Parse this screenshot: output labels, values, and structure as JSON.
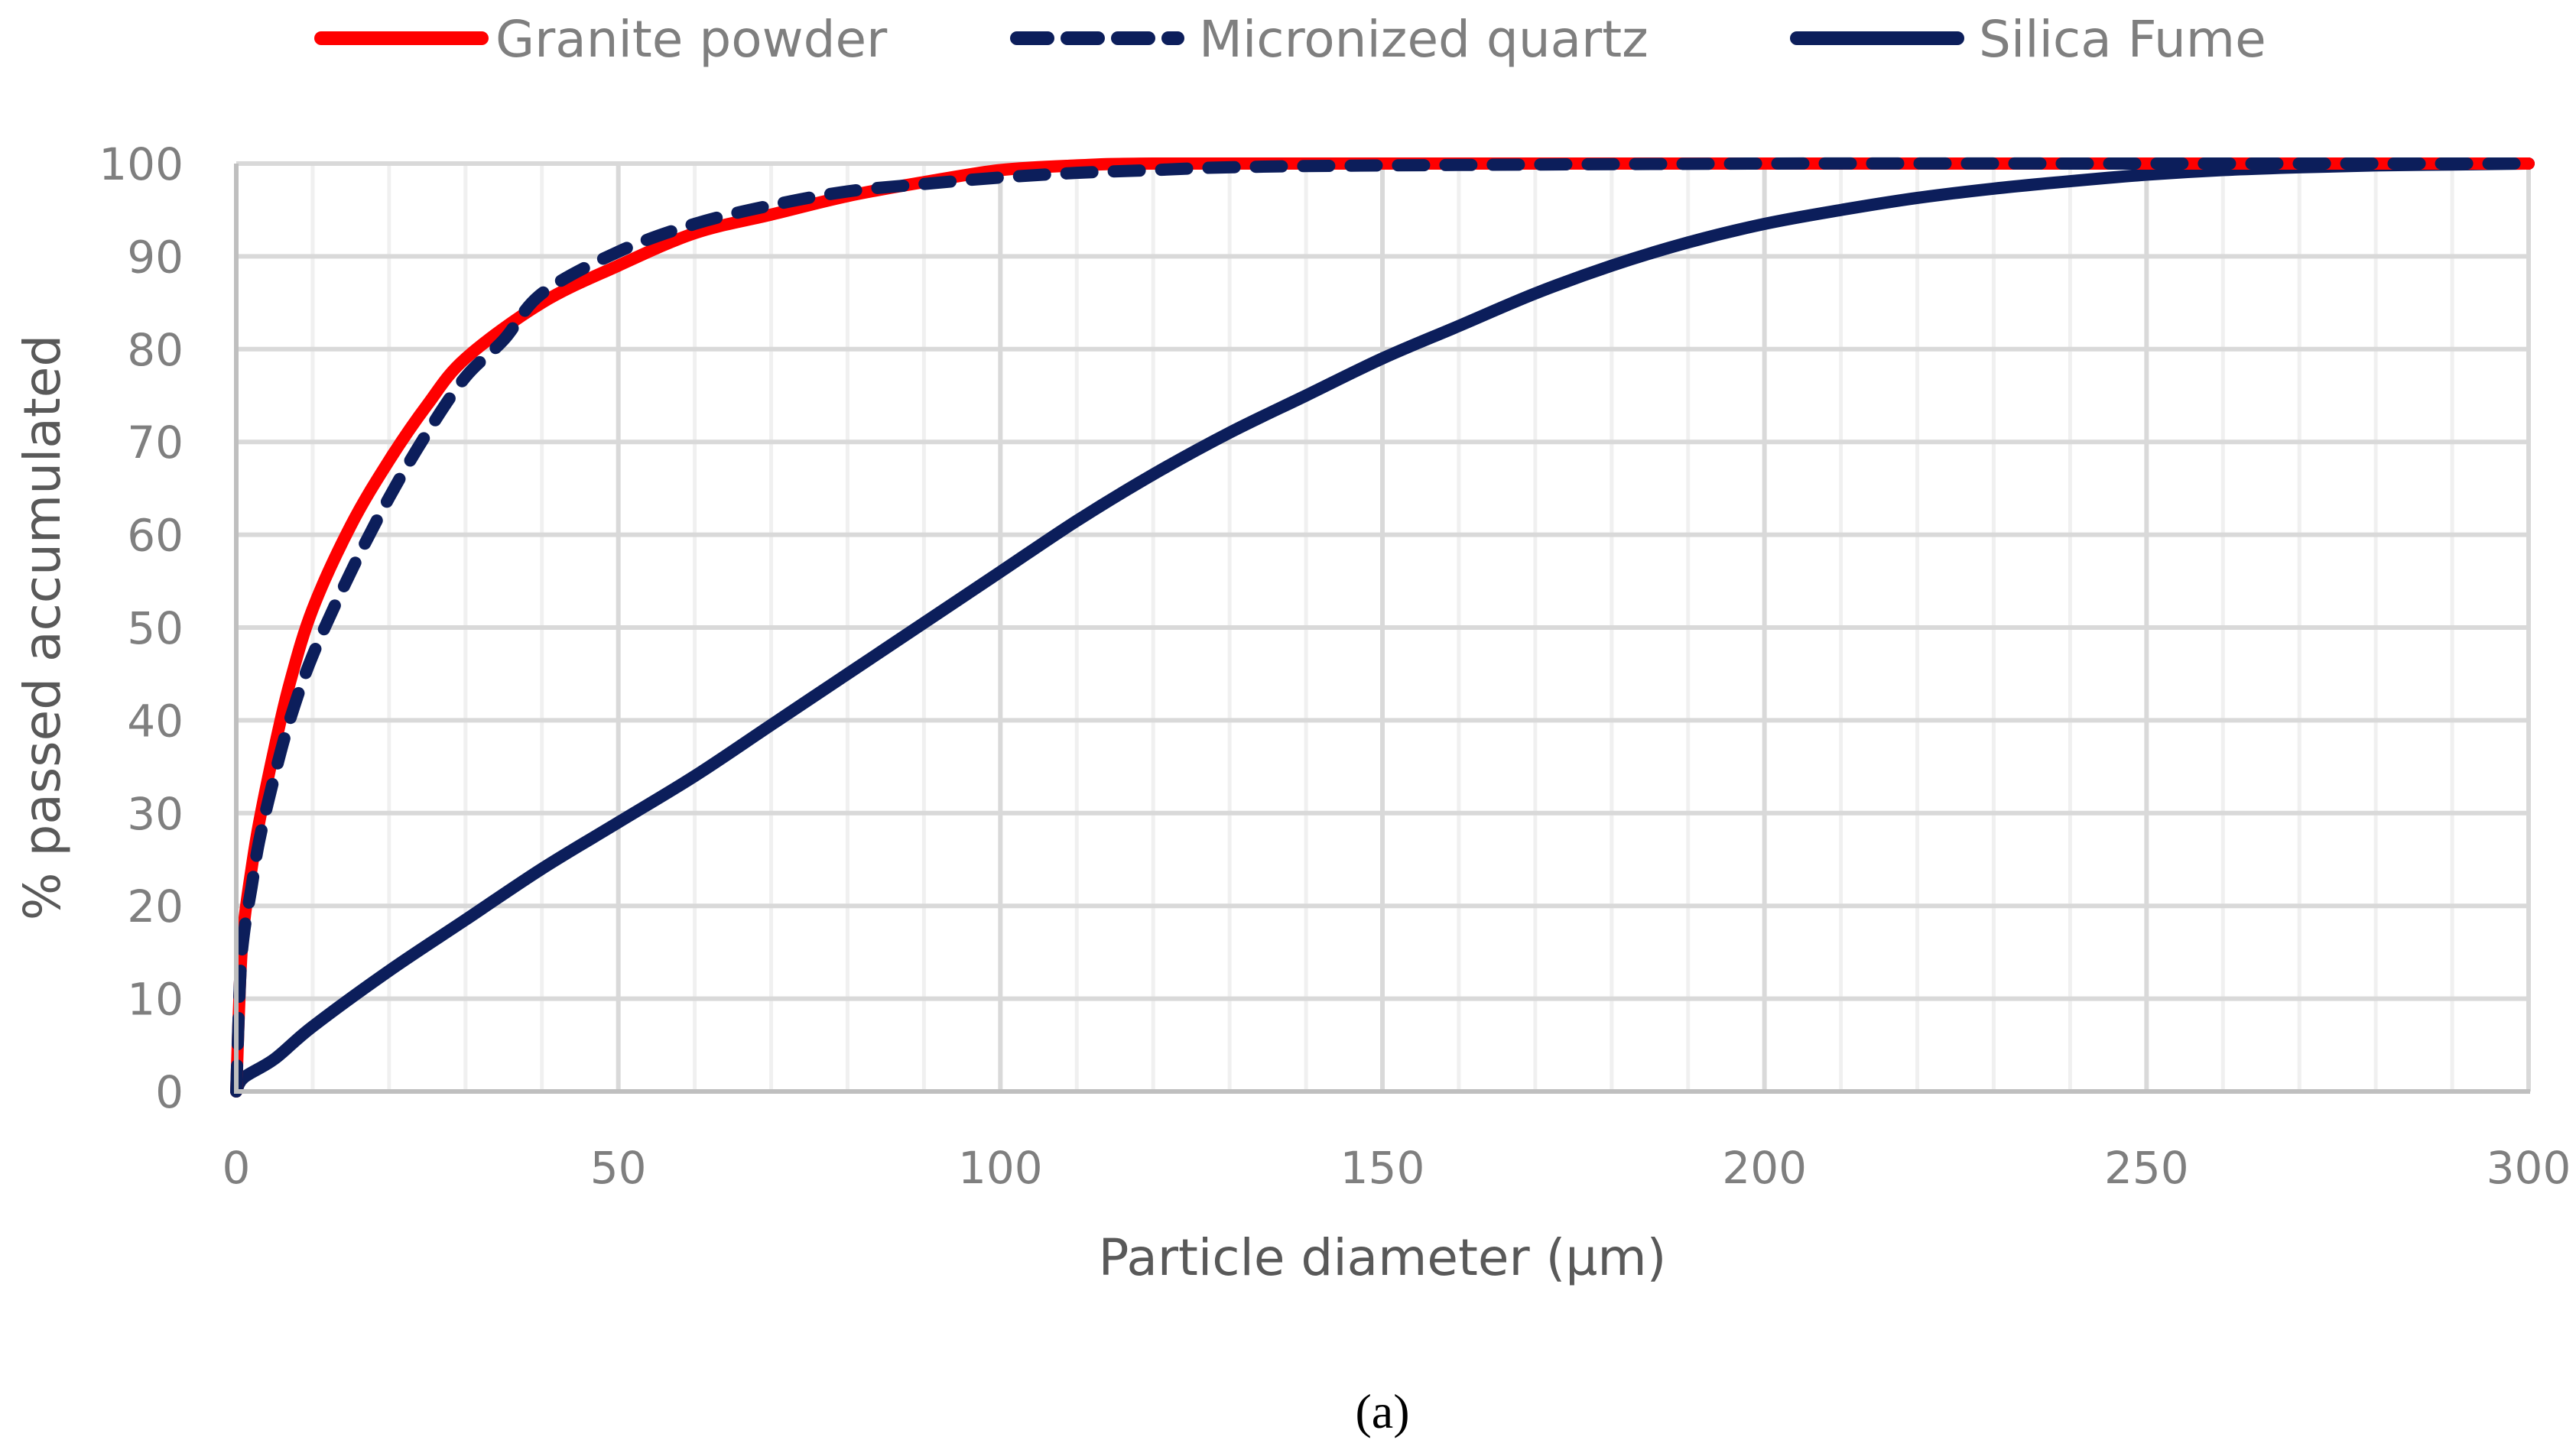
{
  "chart_data": {
    "type": "line",
    "title": "",
    "caption": "(a)",
    "xlabel": "Particle diameter (µm)",
    "ylabel": "% passed accumulated",
    "xlim": [
      0,
      300
    ],
    "ylim": [
      0,
      100
    ],
    "xticks": [
      0,
      50,
      100,
      150,
      200,
      250,
      300
    ],
    "yticks": [
      0,
      10,
      20,
      30,
      40,
      50,
      60,
      70,
      80,
      90,
      100
    ],
    "grid": true,
    "legend_position": "top",
    "series": [
      {
        "name": "Granite powder",
        "color": "#ff0000",
        "style": "solid",
        "x": [
          0,
          0.5,
          1,
          2,
          3,
          5,
          7,
          10,
          15,
          20,
          25,
          30,
          40,
          50,
          60,
          70,
          80,
          90,
          100,
          110,
          120,
          150,
          200,
          250,
          300
        ],
        "y": [
          0,
          12,
          18,
          24,
          29,
          37,
          44,
          52,
          61,
          68,
          74,
          79,
          85,
          89,
          92.5,
          94.5,
          96.5,
          98,
          99.3,
          99.8,
          100,
          100,
          100,
          100,
          100
        ]
      },
      {
        "name": "Micronized quartz",
        "color": "#0c1e5b",
        "style": "dashed",
        "x": [
          0,
          0.5,
          1,
          2,
          3,
          5,
          7,
          10,
          15,
          20,
          25,
          30,
          35,
          40,
          50,
          60,
          70,
          80,
          90,
          100,
          110,
          120,
          130,
          150,
          200,
          250,
          300
        ],
        "y": [
          0,
          12,
          17,
          22,
          27,
          34,
          40,
          47,
          56,
          64,
          71,
          77,
          81,
          86,
          90.5,
          93.5,
          95.5,
          97,
          97.8,
          98.5,
          99,
          99.3,
          99.6,
          99.8,
          100,
          100,
          100
        ]
      },
      {
        "name": "Silica Fume",
        "color": "#0c1e5b",
        "style": "solid",
        "x": [
          0,
          1,
          5,
          10,
          20,
          30,
          40,
          50,
          60,
          70,
          80,
          90,
          100,
          110,
          120,
          130,
          140,
          150,
          160,
          170,
          180,
          190,
          200,
          210,
          220,
          230,
          240,
          250,
          260,
          270,
          280,
          290,
          300
        ],
        "y": [
          0,
          1.5,
          3.5,
          7,
          13,
          18.5,
          24,
          29,
          34,
          39.5,
          45,
          50.5,
          56,
          61.5,
          66.5,
          71,
          75,
          79,
          82.5,
          86,
          89,
          91.5,
          93.5,
          95,
          96.3,
          97.3,
          98.1,
          98.8,
          99.3,
          99.6,
          99.8,
          99.9,
          100
        ]
      }
    ]
  },
  "legend": {
    "items": [
      {
        "label": "Granite powder"
      },
      {
        "label": "Micronized quartz"
      },
      {
        "label": "Silica Fume"
      }
    ]
  },
  "axes": {
    "x_title": "Particle diameter (µm)",
    "y_title": "% passed accumulated",
    "x_tick_labels": [
      "0",
      "50",
      "100",
      "150",
      "200",
      "250",
      "300"
    ],
    "y_tick_labels": [
      "0",
      "10",
      "20",
      "30",
      "40",
      "50",
      "60",
      "70",
      "80",
      "90",
      "100"
    ]
  },
  "caption": "(a)"
}
